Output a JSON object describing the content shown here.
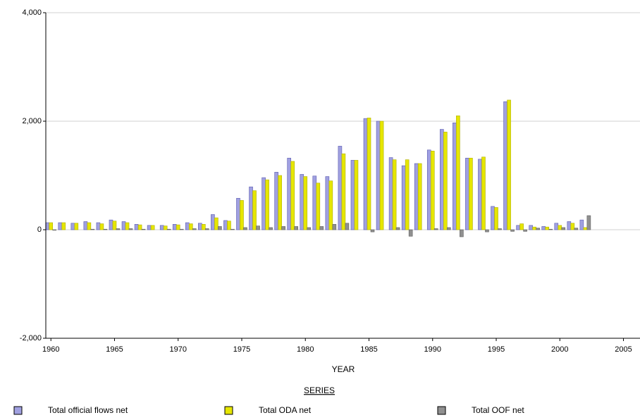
{
  "chart_data": {
    "type": "bar",
    "x_label": "YEAR",
    "legend_title": "SERIES",
    "x": [
      1960,
      1961,
      1962,
      1963,
      1964,
      1965,
      1966,
      1967,
      1968,
      1969,
      1970,
      1971,
      1972,
      1973,
      1974,
      1975,
      1976,
      1977,
      1978,
      1979,
      1980,
      1981,
      1982,
      1983,
      1984,
      1985,
      1986,
      1987,
      1988,
      1989,
      1990,
      1991,
      1992,
      1993,
      1994,
      1995,
      1996,
      1997,
      1998,
      1999,
      2000,
      2001,
      2002
    ],
    "series": [
      {
        "name": "Total official flows net",
        "color": "#a0a0e0",
        "values": [
          130,
          130,
          120,
          150,
          130,
          180,
          150,
          100,
          80,
          80,
          100,
          130,
          120,
          280,
          170,
          580,
          790,
          960,
          1060,
          1320,
          1020,
          990,
          980,
          1540,
          1280,
          2050,
          2000,
          1330,
          1180,
          1220,
          1470,
          1850,
          1970,
          1320,
          1300,
          430,
          2360,
          80,
          80,
          60,
          120,
          150,
          180
        ]
      },
      {
        "name": "Total ODA net",
        "color": "#e6e600",
        "values": [
          130,
          130,
          120,
          130,
          110,
          160,
          130,
          90,
          80,
          70,
          90,
          110,
          100,
          220,
          160,
          540,
          720,
          920,
          1000,
          1260,
          980,
          860,
          900,
          1400,
          1280,
          2060,
          2000,
          1290,
          1290,
          1220,
          1450,
          1800,
          2100,
          1320,
          1340,
          410,
          2390,
          110,
          50,
          50,
          80,
          120,
          40
        ]
      },
      {
        "name": "Total OOF net",
        "color": "#909090",
        "values": [
          -10,
          0,
          0,
          10,
          10,
          20,
          20,
          10,
          0,
          10,
          10,
          20,
          20,
          60,
          10,
          40,
          70,
          40,
          60,
          60,
          40,
          60,
          100,
          120,
          0,
          -40,
          0,
          40,
          -120,
          0,
          20,
          40,
          -130,
          0,
          -40,
          20,
          -30,
          -30,
          30,
          10,
          40,
          30,
          260
        ]
      }
    ],
    "xlim": [
      1959.6,
      2006.3
    ],
    "xticks": [
      1960,
      1965,
      1970,
      1975,
      1980,
      1985,
      1990,
      1995,
      2000,
      2005
    ],
    "ylim": [
      -2000,
      4000
    ],
    "yticks": [
      {
        "value": -2000,
        "label": "-2,000"
      },
      0,
      {
        "value": 2000,
        "label": "2,000"
      },
      {
        "value": 4000,
        "label": "4,000"
      }
    ],
    "grid": true
  }
}
